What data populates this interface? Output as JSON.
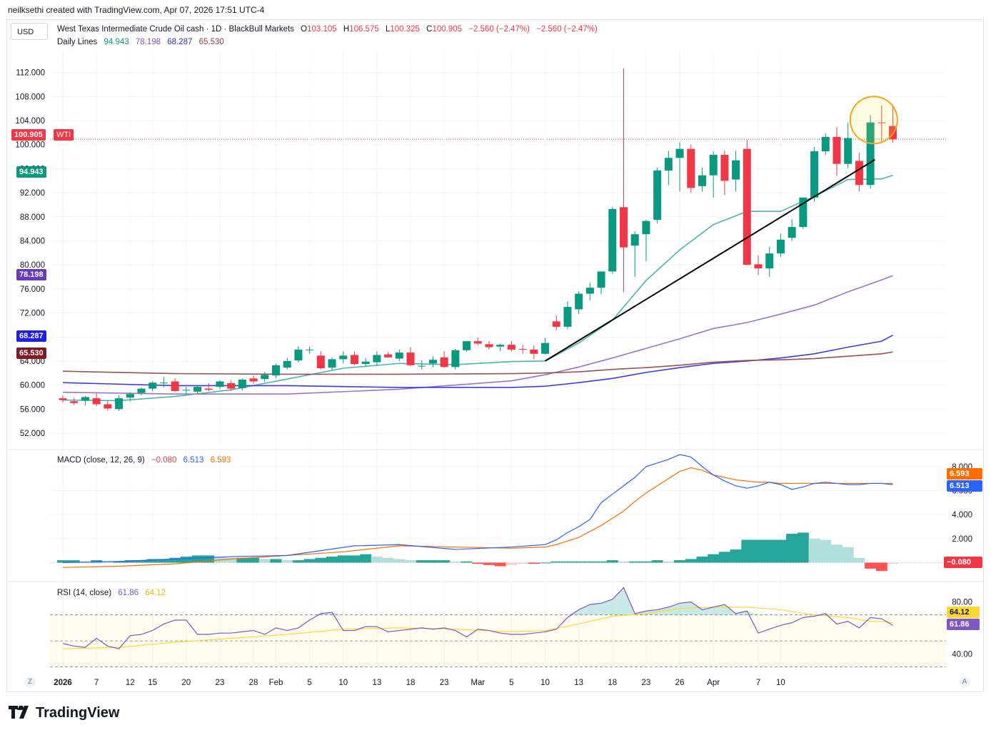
{
  "header": {
    "text": "neilksethi created with TradingView.com, Apr 07, 2026 17:51 UTC-4"
  },
  "currency_button": "USD",
  "logo": {
    "text": "TradingView",
    "icon": "tradingview-logo-icon"
  },
  "buttons": {
    "left": "Z",
    "right": "A"
  },
  "main_legend": {
    "symbol": "West Texas Intermediate Crude Oil cash · 1D · BlackBull Markets",
    "o_label": "O",
    "o": "103.105",
    "h_label": "H",
    "h": "106.575",
    "l_label": "L",
    "l": "100.325",
    "c_label": "C",
    "c": "100.905",
    "change": "−2.560 (−2.47%)",
    "change2": "−2.560 (−2.47%)",
    "lines_label": "Daily Lines",
    "lines": [
      "94.943",
      "78.198",
      "68.287",
      "65.530"
    ]
  },
  "colors": {
    "up": "#26a69a",
    "down": "#ef5350",
    "up_dark": "#089981",
    "down_dark": "#f23645",
    "sma20": "#4db6ac",
    "sma50": "#9575cd",
    "sma100": "#3d3be0",
    "sma200": "#9c5050",
    "macd": "#2962ff",
    "signal": "#ff6d00",
    "rsi": "#7e57c2",
    "rsi_ma": "#fdd835"
  },
  "price_tags": {
    "last": {
      "value": "100.905",
      "name": "WTI",
      "color": "#f23645"
    },
    "sma20": {
      "value": "94.943",
      "color": "#089981"
    },
    "sma50": {
      "value": "78.198",
      "color": "#673ab7"
    },
    "sma100": {
      "value": "68.287",
      "color": "#1e1ee8"
    },
    "sma200": {
      "value": "65.530",
      "color": "#801922"
    }
  },
  "macd_legend": {
    "label": "MACD (close, 12, 26, 9)",
    "hist": "−0.080",
    "macd": "6.513",
    "signal": "6.593"
  },
  "macd_tags": {
    "signal": "6.593",
    "macd": "6.513",
    "hist": "−0.080"
  },
  "rsi_legend": {
    "label": "RSI (14, close)",
    "rsi": "61.86",
    "ma": "64.12"
  },
  "rsi_tags": {
    "ma": "64.12",
    "rsi": "61.86"
  },
  "chart_data": {
    "type": "candlestick",
    "title": "West Texas Intermediate Crude Oil cash · 1D · BlackBull Markets",
    "x_tick_labels": [
      "2026",
      "7",
      "12",
      "15",
      "20",
      "23",
      "28",
      "Feb",
      "5",
      "10",
      "13",
      "18",
      "23",
      "Mar",
      "5",
      "10",
      "13",
      "18",
      "23",
      "26",
      "Apr",
      "7",
      "10"
    ],
    "price_axis": {
      "ticks": [
        52,
        56,
        60,
        64,
        68,
        72,
        76,
        80,
        84,
        88,
        92,
        96,
        100,
        104,
        108,
        112
      ],
      "range": [
        49.5,
        116
      ]
    },
    "candles_ohlc": [
      [
        57.8,
        58.3,
        57.1,
        57.5
      ],
      [
        57.3,
        57.9,
        56.7,
        57.0
      ],
      [
        57.4,
        58.2,
        56.6,
        58.0
      ],
      [
        57.8,
        58.6,
        56.5,
        56.8
      ],
      [
        56.8,
        57.3,
        55.8,
        56.1
      ],
      [
        56.0,
        58.3,
        55.7,
        57.8
      ],
      [
        57.9,
        58.8,
        57.3,
        58.5
      ],
      [
        58.7,
        59.6,
        58.3,
        59.4
      ],
      [
        59.4,
        60.6,
        59.0,
        60.4
      ],
      [
        60.3,
        61.3,
        59.6,
        60.4
      ],
      [
        60.6,
        61.1,
        58.8,
        59.0
      ],
      [
        59.2,
        59.7,
        58.6,
        59.2
      ],
      [
        58.9,
        59.9,
        58.6,
        59.7
      ],
      [
        59.4,
        60.3,
        59.0,
        59.2
      ],
      [
        59.7,
        60.8,
        59.3,
        60.6
      ],
      [
        60.3,
        60.8,
        59.0,
        59.4
      ],
      [
        59.5,
        61.1,
        59.1,
        60.9
      ],
      [
        61.1,
        61.6,
        60.2,
        60.6
      ],
      [
        61.0,
        62.2,
        60.5,
        61.7
      ],
      [
        61.6,
        63.6,
        61.2,
        63.3
      ],
      [
        62.9,
        64.5,
        62.6,
        64.0
      ],
      [
        64.1,
        66.5,
        63.8,
        65.9
      ],
      [
        65.9,
        66.4,
        65.2,
        65.9
      ],
      [
        64.9,
        65.6,
        62.6,
        62.8
      ],
      [
        62.9,
        64.6,
        62.4,
        64.3
      ],
      [
        64.3,
        65.6,
        63.6,
        64.9
      ],
      [
        65.0,
        65.6,
        63.3,
        63.5
      ],
      [
        63.5,
        64.5,
        63.1,
        63.9
      ],
      [
        63.8,
        65.6,
        63.2,
        65.0
      ],
      [
        65.1,
        65.5,
        64.6,
        64.6
      ],
      [
        64.4,
        65.9,
        64.0,
        65.4
      ],
      [
        65.4,
        66.3,
        63.1,
        63.3
      ],
      [
        63.1,
        64.1,
        62.6,
        63.2
      ],
      [
        63.6,
        64.8,
        62.9,
        64.2
      ],
      [
        64.6,
        65.6,
        62.9,
        63.0
      ],
      [
        63.0,
        66.0,
        62.6,
        65.8
      ],
      [
        65.8,
        67.3,
        65.6,
        67.3
      ],
      [
        67.3,
        67.9,
        66.6,
        66.9
      ],
      [
        66.8,
        67.3,
        65.9,
        66.3
      ],
      [
        66.4,
        66.9,
        65.6,
        66.7
      ],
      [
        66.7,
        67.3,
        65.6,
        65.9
      ],
      [
        66.0,
        66.7,
        65.2,
        65.9
      ],
      [
        65.9,
        66.6,
        64.3,
        65.2
      ],
      [
        65.2,
        67.9,
        65.1,
        67.0
      ],
      [
        70.6,
        71.6,
        69.1,
        69.7
      ],
      [
        69.7,
        73.9,
        69.3,
        73.0
      ],
      [
        72.6,
        75.6,
        71.8,
        75.2
      ],
      [
        75.2,
        77.1,
        74.1,
        76.2
      ],
      [
        76.2,
        78.9,
        75.1,
        78.9
      ],
      [
        78.9,
        89.6,
        78.5,
        89.3
      ],
      [
        89.6,
        112.7,
        75.5,
        82.9
      ],
      [
        83.2,
        85.6,
        78.0,
        85.1
      ],
      [
        85.1,
        87.5,
        80.6,
        87.3
      ],
      [
        87.5,
        96.2,
        86.9,
        95.7
      ],
      [
        95.7,
        99.0,
        93.3,
        97.8
      ],
      [
        97.8,
        100.4,
        92.2,
        99.3
      ],
      [
        99.3,
        100.0,
        92.0,
        92.8
      ],
      [
        93.1,
        96.2,
        92.2,
        94.9
      ],
      [
        94.9,
        98.9,
        91.2,
        98.3
      ],
      [
        98.3,
        99.0,
        91.6,
        94.0
      ],
      [
        94.2,
        99.0,
        92.2,
        97.4
      ],
      [
        99.3,
        100.8,
        83.8,
        80.0
      ],
      [
        80.1,
        81.6,
        78.3,
        79.4
      ],
      [
        79.4,
        83.0,
        78.0,
        81.9
      ],
      [
        81.9,
        85.2,
        81.3,
        84.2
      ],
      [
        84.5,
        87.6,
        84.0,
        86.3
      ],
      [
        86.3,
        91.2,
        86.0,
        91.2
      ],
      [
        91.2,
        99.6,
        90.5,
        98.9
      ],
      [
        98.9,
        101.9,
        98.3,
        101.3
      ],
      [
        101.3,
        102.9,
        94.8,
        96.8
      ],
      [
        96.8,
        103.7,
        96.1,
        101.1
      ],
      [
        97.3,
        98.6,
        92.2,
        93.3
      ],
      [
        93.3,
        104.9,
        92.7,
        103.7
      ],
      [
        103.7,
        106.5,
        100.5,
        103.6
      ],
      [
        103.1,
        106.6,
        100.3,
        100.9
      ]
    ],
    "series": [
      {
        "name": "94.943",
        "type": "line",
        "x": [
          0,
          5,
          10,
          15,
          20,
          25,
          30,
          35,
          40,
          43,
          46,
          49,
          52,
          55,
          58,
          61,
          64,
          67,
          70,
          73,
          74
        ],
        "y": [
          57.5,
          57.4,
          58.1,
          59.2,
          61.0,
          62.8,
          63.6,
          63.4,
          63.9,
          64.0,
          67.0,
          70.8,
          77.4,
          82.5,
          86.7,
          88.9,
          88.9,
          91.4,
          94.2,
          94.3,
          94.9
        ]
      },
      {
        "name": "78.198",
        "type": "line",
        "x": [
          0,
          10,
          20,
          30,
          40,
          43,
          46,
          49,
          52,
          55,
          58,
          61,
          64,
          67,
          70,
          73,
          74
        ],
        "y": [
          58.8,
          58.5,
          58.5,
          59.3,
          60.7,
          61.7,
          63.0,
          64.5,
          66.1,
          67.7,
          69.4,
          70.4,
          71.8,
          73.3,
          75.5,
          77.5,
          78.2
        ]
      },
      {
        "name": "68.287",
        "type": "line",
        "x": [
          0,
          10,
          20,
          30,
          40,
          43,
          46,
          49,
          52,
          55,
          58,
          61,
          64,
          67,
          70,
          73,
          74
        ],
        "y": [
          60.4,
          59.9,
          59.9,
          59.6,
          59.6,
          59.8,
          60.4,
          61.1,
          62.1,
          62.9,
          63.6,
          64.0,
          64.5,
          65.2,
          66.3,
          67.3,
          68.3
        ]
      },
      {
        "name": "65.530",
        "type": "line",
        "x": [
          0,
          10,
          20,
          30,
          40,
          43,
          46,
          49,
          52,
          55,
          58,
          61,
          64,
          67,
          70,
          73,
          74
        ],
        "y": [
          62.3,
          61.9,
          61.8,
          61.8,
          61.9,
          62.0,
          62.2,
          62.6,
          62.9,
          63.3,
          63.8,
          64.1,
          64.2,
          64.4,
          64.8,
          65.2,
          65.5
        ]
      }
    ],
    "trendline": [
      [
        43,
        64.0
      ],
      [
        72.4,
        97.5
      ]
    ],
    "highlight_circle": {
      "center_x": 72.3,
      "center_y": 104.1,
      "radius_bars": 2.1
    },
    "macd": {
      "ticks": [
        2.0,
        4.0,
        6.0,
        8.0
      ],
      "range": [
        -1.4,
        9.3
      ],
      "macd_line": {
        "x": [
          0,
          5,
          10,
          15,
          20,
          23,
          26,
          30,
          35,
          40,
          43,
          44,
          45,
          46,
          47,
          48,
          49,
          50,
          51,
          52,
          53,
          54,
          55,
          56,
          57,
          58,
          59,
          60,
          61,
          62,
          63,
          64,
          65,
          66,
          67,
          68,
          69,
          70,
          71,
          72,
          73,
          74
        ],
        "y": [
          0.0,
          0.1,
          0.3,
          0.5,
          0.6,
          1.0,
          1.4,
          1.5,
          1.1,
          1.3,
          1.5,
          1.9,
          2.5,
          3.0,
          3.6,
          5.0,
          5.7,
          6.4,
          7.1,
          8.0,
          8.3,
          8.6,
          9.0,
          8.8,
          8.0,
          7.3,
          6.8,
          6.4,
          6.2,
          6.4,
          6.7,
          6.5,
          6.1,
          6.3,
          6.6,
          6.7,
          6.6,
          6.5,
          6.5,
          6.6,
          6.6,
          6.5
        ]
      },
      "signal_line": {
        "x": [
          0,
          5,
          10,
          15,
          20,
          25,
          30,
          35,
          40,
          43,
          44,
          45,
          46,
          47,
          48,
          49,
          50,
          51,
          52,
          53,
          54,
          55,
          56,
          57,
          58,
          59,
          60,
          61,
          62,
          63,
          64,
          65,
          66,
          67,
          68,
          69,
          70,
          71,
          72,
          73,
          74
        ],
        "y": [
          -0.4,
          -0.3,
          -0.1,
          0.3,
          0.6,
          0.9,
          1.4,
          1.3,
          1.2,
          1.3,
          1.5,
          1.8,
          2.1,
          2.6,
          3.1,
          3.7,
          4.3,
          5.1,
          5.8,
          6.4,
          7.0,
          7.6,
          7.9,
          7.7,
          7.3,
          7.1,
          6.9,
          6.8,
          6.7,
          6.7,
          6.6,
          6.6,
          6.6,
          6.6,
          6.6,
          6.6,
          6.6,
          6.6,
          6.6,
          6.6,
          6.6
        ]
      },
      "histogram": [
        0.2,
        0.2,
        0.1,
        0.2,
        0.1,
        0.1,
        0.2,
        0.2,
        0.3,
        0.3,
        0.4,
        0.5,
        0.6,
        0.6,
        0.5,
        0.4,
        0.4,
        0.4,
        0.3,
        0.3,
        0.2,
        0.2,
        0.3,
        0.4,
        0.5,
        0.6,
        0.6,
        0.7,
        0.5,
        0.4,
        0.3,
        0.2,
        0.2,
        0.2,
        0.2,
        0.1,
        0.1,
        -0.1,
        -0.2,
        -0.3,
        -0.2,
        -0.1,
        -0.1,
        0.0,
        0.1,
        0.1,
        0.1,
        0.1,
        0.1,
        0.2,
        0.1,
        0.1,
        0.1,
        0.2,
        0.1,
        0.2,
        0.3,
        0.5,
        0.7,
        0.9,
        1.1,
        1.9,
        1.9,
        1.9,
        1.9,
        2.4,
        2.5,
        2.0,
        1.9,
        1.5,
        1.3,
        0.4,
        -0.5,
        -0.7,
        -0.1
      ]
    },
    "rsi": {
      "ticks": [
        40,
        80
      ],
      "band": [
        30,
        70
      ],
      "midline": 50,
      "range": [
        27,
        94
      ],
      "rsi_line": {
        "x": [
          0,
          1,
          2,
          3,
          4,
          5,
          6,
          7,
          8,
          9,
          10,
          11,
          12,
          13,
          14,
          15,
          16,
          17,
          18,
          19,
          20,
          21,
          22,
          23,
          24,
          25,
          26,
          27,
          28,
          29,
          30,
          31,
          32,
          33,
          34,
          35,
          36,
          37,
          38,
          39,
          40,
          41,
          42,
          43,
          44,
          45,
          46,
          47,
          48,
          49,
          50,
          51,
          52,
          53,
          54,
          55,
          56,
          57,
          58,
          59,
          60,
          61,
          62,
          63,
          64,
          65,
          66,
          67,
          68,
          69,
          70,
          71,
          72,
          73,
          74
        ],
        "y": [
          48,
          46,
          45,
          52,
          46,
          44,
          54,
          55,
          58,
          63,
          66,
          66,
          55,
          55,
          56,
          56,
          57,
          58,
          55,
          60,
          58,
          60,
          66,
          71,
          72,
          58,
          58,
          61,
          61,
          57,
          58,
          59,
          60,
          59,
          60,
          58,
          53,
          59,
          58,
          56,
          55,
          55,
          56,
          57,
          59,
          68,
          74,
          78,
          79,
          82,
          91,
          71,
          73,
          74,
          76,
          79,
          80,
          74,
          76,
          78,
          71,
          73,
          56,
          59,
          62,
          64,
          68,
          69,
          71,
          63,
          65,
          60,
          68,
          67,
          62
        ]
      },
      "ma_line": {
        "x": [
          0,
          5,
          10,
          15,
          20,
          25,
          30,
          35,
          40,
          43,
          46,
          49,
          52,
          55,
          58,
          61,
          64,
          67,
          70,
          72,
          73,
          74
        ],
        "y": [
          44,
          45,
          49,
          52,
          55,
          59,
          60,
          59,
          57,
          58,
          63,
          69,
          71,
          75,
          76,
          76,
          74,
          70,
          68,
          65,
          65,
          64
        ]
      }
    }
  }
}
